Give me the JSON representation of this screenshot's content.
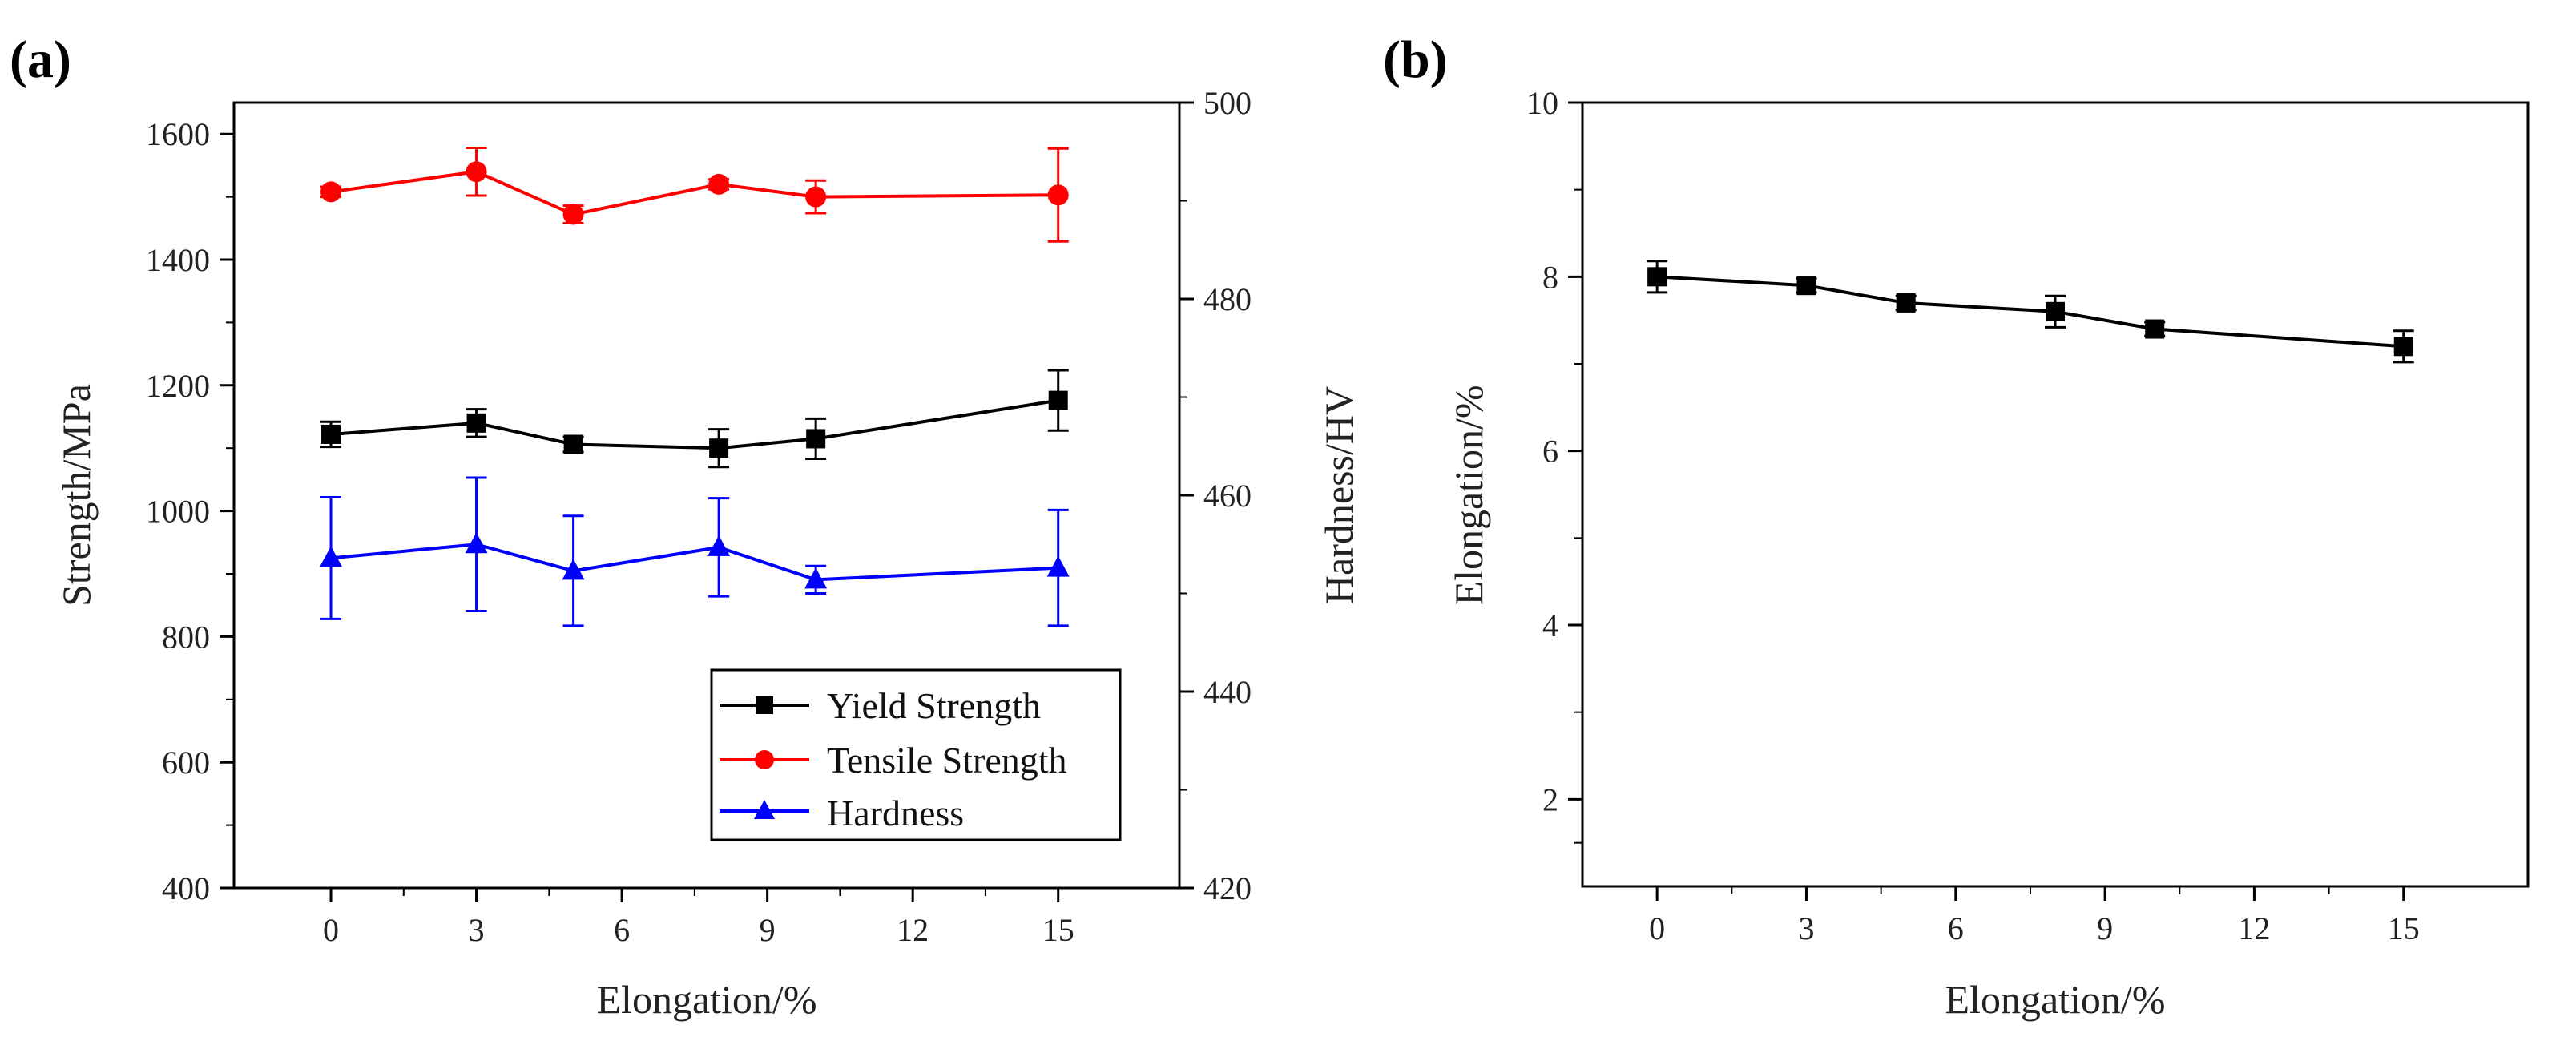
{
  "chart_data": [
    {
      "panel_label": "(a)",
      "type": "line",
      "xlabel": "Elongation/%",
      "ylabel": "Strength/MPa",
      "y2label": "Hardness/HV",
      "xlim": [
        -2,
        17.5
      ],
      "ylim": [
        400,
        1650
      ],
      "y2lim": [
        420,
        500
      ],
      "xticks": [
        0,
        3,
        6,
        9,
        12,
        15
      ],
      "yticks": [
        400,
        600,
        800,
        1000,
        1200,
        1400,
        1600
      ],
      "y2ticks": [
        420,
        440,
        460,
        480,
        500
      ],
      "legend_position": "bottom-right",
      "x": [
        0,
        3,
        5,
        8,
        10,
        15
      ],
      "series": [
        {
          "name": "Yield Strength",
          "axis": "left",
          "color": "#000000",
          "marker": "square",
          "values": [
            1122,
            1140,
            1106,
            1100,
            1115,
            1176
          ],
          "errors": [
            20,
            22,
            12,
            30,
            32,
            48
          ]
        },
        {
          "name": "Tensile Strength",
          "axis": "left",
          "color": "#ff0000",
          "marker": "circle",
          "values": [
            1508,
            1540,
            1472,
            1520,
            1500,
            1503
          ],
          "errors": [
            8,
            38,
            14,
            8,
            26,
            74
          ]
        },
        {
          "name": "Hardness",
          "axis": "right",
          "color": "#0000ff",
          "marker": "triangle",
          "values": [
            453.6,
            455.0,
            452.3,
            454.7,
            451.4,
            452.6
          ],
          "errors": [
            6.2,
            6.8,
            5.6,
            5.0,
            1.4,
            5.9
          ]
        }
      ]
    },
    {
      "panel_label": "(b)",
      "type": "line",
      "xlabel": "Elongation/%",
      "ylabel": "Elongation/%",
      "xlim": [
        -1.5,
        17.5
      ],
      "ylim": [
        1,
        10
      ],
      "xticks": [
        0,
        3,
        6,
        9,
        12,
        15
      ],
      "yticks": [
        2,
        4,
        6,
        8,
        10
      ],
      "x": [
        0,
        3,
        5,
        8,
        10,
        15
      ],
      "series": [
        {
          "name": "Elongation",
          "color": "#000000",
          "marker": "square",
          "values": [
            8.0,
            7.9,
            7.7,
            7.6,
            7.4,
            7.2
          ],
          "errors": [
            0.18,
            0.08,
            0.08,
            0.18,
            0.08,
            0.18
          ]
        }
      ]
    }
  ]
}
